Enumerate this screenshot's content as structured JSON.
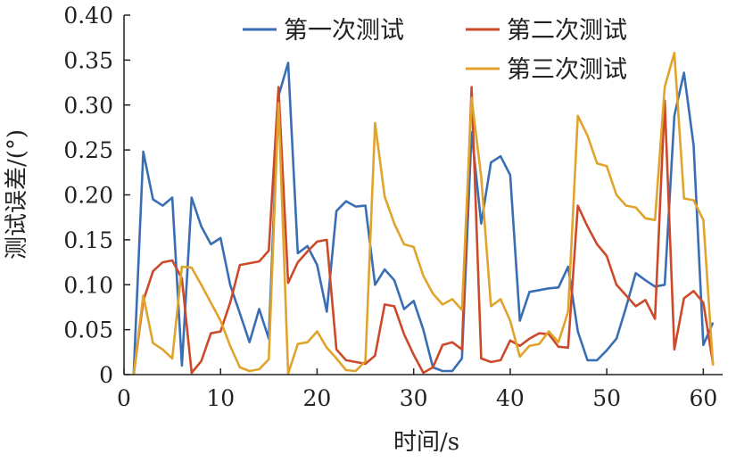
{
  "chart_data": {
    "type": "line",
    "title": "",
    "xlabel": "时间/s",
    "ylabel": "测试误差/(°)",
    "xlim": [
      0,
      62
    ],
    "ylim": [
      0,
      0.4
    ],
    "xticks": [
      0,
      10,
      20,
      30,
      40,
      50,
      60
    ],
    "xtick_labels": [
      "0",
      "10",
      "20",
      "30",
      "40",
      "50",
      "60"
    ],
    "yticks": [
      0,
      0.05,
      0.1,
      0.15,
      0.2,
      0.25,
      0.3,
      0.35,
      0.4
    ],
    "ytick_labels": [
      "0",
      "0.05",
      "0.10",
      "0.15",
      "0.20",
      "0.25",
      "0.30",
      "0.35",
      "0.40"
    ],
    "grid": false,
    "legend_position": "top-right",
    "x": [
      1,
      2,
      3,
      4,
      5,
      6,
      7,
      8,
      9,
      10,
      11,
      12,
      13,
      14,
      15,
      16,
      17,
      18,
      19,
      20,
      21,
      22,
      23,
      24,
      25,
      26,
      27,
      28,
      29,
      30,
      31,
      32,
      33,
      34,
      35,
      36,
      37,
      38,
      39,
      40,
      41,
      42,
      43,
      44,
      45,
      46,
      47,
      48,
      49,
      50,
      51,
      52,
      53,
      54,
      55,
      56,
      57,
      58,
      59,
      60,
      61
    ],
    "series": [
      {
        "name": "第一次测试",
        "color": "#3a6eb4",
        "values": [
          0.0,
          0.248,
          0.195,
          0.188,
          0.197,
          0.01,
          0.197,
          0.165,
          0.145,
          0.152,
          0.1,
          0.068,
          0.036,
          0.073,
          0.04,
          0.31,
          0.347,
          0.135,
          0.143,
          0.122,
          0.07,
          0.182,
          0.193,
          0.187,
          0.188,
          0.1,
          0.117,
          0.105,
          0.073,
          0.082,
          0.05,
          0.008,
          0.004,
          0.004,
          0.018,
          0.27,
          0.168,
          0.236,
          0.243,
          0.222,
          0.06,
          0.092,
          0.094,
          0.096,
          0.097,
          0.12,
          0.048,
          0.016,
          0.016,
          0.027,
          0.04,
          0.075,
          0.113,
          0.105,
          0.098,
          0.1,
          0.288,
          0.336,
          0.255,
          0.033,
          0.058
        ]
      },
      {
        "name": "第二次测试",
        "color": "#cc4a2a",
        "values": [
          0.0,
          0.082,
          0.115,
          0.125,
          0.127,
          0.107,
          0.002,
          0.015,
          0.046,
          0.048,
          0.08,
          0.122,
          0.124,
          0.126,
          0.138,
          0.32,
          0.102,
          0.125,
          0.137,
          0.148,
          0.15,
          0.028,
          0.016,
          0.014,
          0.012,
          0.021,
          0.078,
          0.076,
          0.045,
          0.022,
          0.002,
          0.008,
          0.033,
          0.036,
          0.028,
          0.32,
          0.018,
          0.014,
          0.016,
          0.038,
          0.032,
          0.04,
          0.046,
          0.045,
          0.031,
          0.03,
          0.188,
          0.165,
          0.145,
          0.132,
          0.1,
          0.088,
          0.076,
          0.083,
          0.062,
          0.305,
          0.028,
          0.085,
          0.093,
          0.08,
          0.012
        ]
      },
      {
        "name": "第三次测试",
        "color": "#e0a42c",
        "values": [
          0.0,
          0.088,
          0.035,
          0.028,
          0.018,
          0.12,
          0.119,
          0.1,
          0.08,
          0.06,
          0.032,
          0.008,
          0.004,
          0.006,
          0.017,
          0.302,
          0.001,
          0.034,
          0.036,
          0.048,
          0.03,
          0.018,
          0.005,
          0.004,
          0.015,
          0.28,
          0.198,
          0.168,
          0.145,
          0.142,
          0.11,
          0.09,
          0.078,
          0.084,
          0.072,
          0.308,
          0.22,
          0.076,
          0.084,
          0.06,
          0.02,
          0.032,
          0.034,
          0.048,
          0.036,
          0.07,
          0.288,
          0.266,
          0.235,
          0.232,
          0.2,
          0.188,
          0.186,
          0.174,
          0.172,
          0.32,
          0.358,
          0.196,
          0.194,
          0.172,
          0.01
        ]
      }
    ]
  }
}
